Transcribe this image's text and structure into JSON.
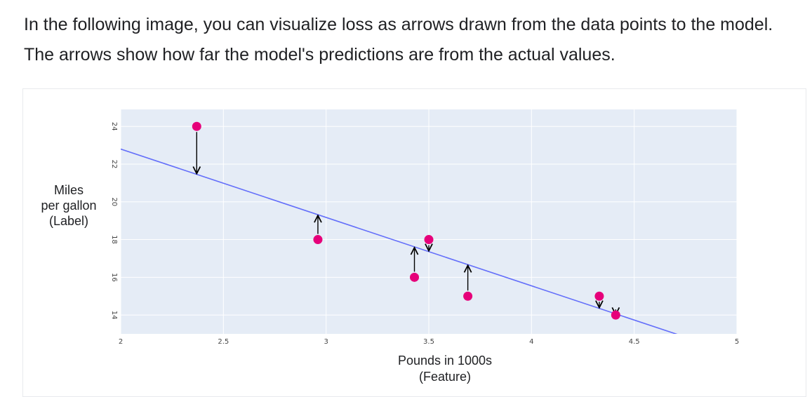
{
  "intro": {
    "text": "In the following image, you can visualize loss as arrows drawn from the data points to the model. The arrows show how far the model's predictions are from the actual values."
  },
  "chart_data": {
    "type": "scatter",
    "title": "",
    "xlabel_lines": [
      "Pounds in 1000s",
      "(Feature)"
    ],
    "ylabel_lines": [
      "Miles",
      "per gallon",
      "(Label)"
    ],
    "xlim": [
      2,
      5
    ],
    "ylim": [
      13,
      24.9
    ],
    "x_ticks": [
      "2",
      "2.5",
      "3",
      "3.5",
      "4",
      "4.5",
      "5"
    ],
    "y_ticks": [
      "14",
      "16",
      "18",
      "20",
      "22",
      "24"
    ],
    "grid": true,
    "plot_background": "#e5ecf6",
    "points": [
      {
        "x": 2.37,
        "y": 24
      },
      {
        "x": 2.96,
        "y": 18
      },
      {
        "x": 3.43,
        "y": 16
      },
      {
        "x": 3.5,
        "y": 18
      },
      {
        "x": 3.69,
        "y": 15
      },
      {
        "x": 4.33,
        "y": 15
      },
      {
        "x": 4.41,
        "y": 14
      }
    ],
    "point_color": "#e6007a",
    "model_line": {
      "x": [
        2,
        4.73
      ],
      "y": [
        22.8,
        12.9
      ],
      "color": "#636efa"
    },
    "loss_arrows": true,
    "arrow_color": "#000000"
  }
}
